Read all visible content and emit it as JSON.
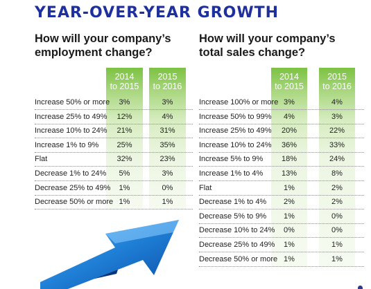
{
  "header": {
    "title": "YEAR-OVER-YEAR GROWTH"
  },
  "colors": {
    "title": "#1e2f9e",
    "column_green": "#7cc242",
    "arrow_blue": "#1f7fd6"
  },
  "arrow_icon": "up-right-arrow",
  "chart_data": [
    {
      "type": "table",
      "title_lines": [
        "How will your company’s",
        "employment change?"
      ],
      "columns": [
        {
          "line1": "2014",
          "line2": "to 2015"
        },
        {
          "line1": "2015",
          "line2": "to 2016"
        }
      ],
      "rows": [
        {
          "label": "Increase 50% or more",
          "values": [
            "3%",
            "3%"
          ]
        },
        {
          "label": "Increase 25% to 49%",
          "values": [
            "12%",
            "4%"
          ]
        },
        {
          "label": "Increase 10% to 24%",
          "values": [
            "21%",
            "31%"
          ]
        },
        {
          "label": "Increase 1% to 9%",
          "values": [
            "25%",
            "35%"
          ]
        },
        {
          "label": "Flat",
          "values": [
            "32%",
            "23%"
          ]
        },
        {
          "label": "Decrease 1% to 24%",
          "values": [
            "5%",
            "3%"
          ]
        },
        {
          "label": "Decrease 25% to 49%",
          "values": [
            "1%",
            "0%"
          ]
        },
        {
          "label": "Decrease 50% or more",
          "values": [
            "1%",
            "1%"
          ]
        }
      ]
    },
    {
      "type": "table",
      "title_lines": [
        "How will your company’s",
        "total sales change?"
      ],
      "columns": [
        {
          "line1": "2014",
          "line2": "to 2015"
        },
        {
          "line1": "2015",
          "line2": "to 2016"
        }
      ],
      "rows": [
        {
          "label": "Increase 100% or more",
          "values": [
            "3%",
            "4%"
          ]
        },
        {
          "label": "Increase 50% to 99%",
          "values": [
            "4%",
            "3%"
          ]
        },
        {
          "label": "Increase 25% to 49%",
          "values": [
            "20%",
            "22%"
          ]
        },
        {
          "label": "Increase 10% to 24%",
          "values": [
            "36%",
            "33%"
          ]
        },
        {
          "label": "Increase 5% to 9%",
          "values": [
            "18%",
            "24%"
          ]
        },
        {
          "label": "Increase 1% to 4%",
          "values": [
            "13%",
            "8%"
          ]
        },
        {
          "label": "Flat",
          "values": [
            "1%",
            "2%"
          ]
        },
        {
          "label": "Decrease 1% to 4%",
          "values": [
            "2%",
            "2%"
          ]
        },
        {
          "label": "Decrease 5% to 9%",
          "values": [
            "1%",
            "0%"
          ]
        },
        {
          "label": "Decrease 10% to 24%",
          "values": [
            "0%",
            "0%"
          ]
        },
        {
          "label": "Decrease 25% to 49%",
          "values": [
            "1%",
            "1%"
          ]
        },
        {
          "label": "Decrease 50% or more",
          "values": [
            "1%",
            "1%"
          ]
        }
      ]
    }
  ]
}
